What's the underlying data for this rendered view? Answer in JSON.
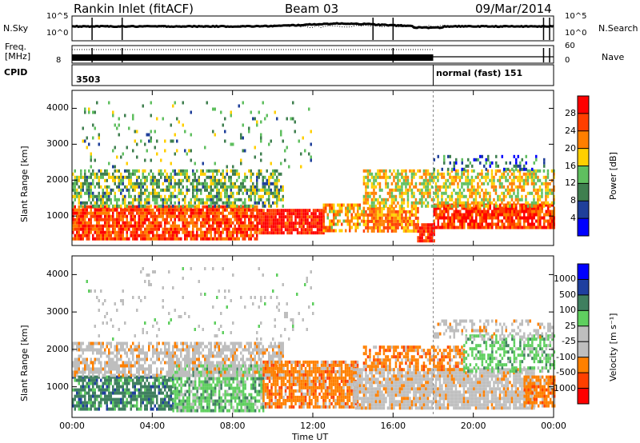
{
  "header": {
    "station": "Rankin Inlet (fitACF)",
    "beam": "Beam 03",
    "date": "09/Mar/2014"
  },
  "top_panel": {
    "nsky_label": "N.Sky",
    "nsearch_label": "N.Search",
    "freq_label_1": "Freq.",
    "freq_label_2": "[MHz]",
    "nave_label": "Nave",
    "cpid_label": "CPID",
    "left_ticks": [
      "10^5",
      "10^0",
      "8"
    ],
    "right_ticks": [
      "10^5",
      "10^0",
      "60",
      "0"
    ],
    "cpid_1": "3503",
    "cpid_2": "normal (fast) 151",
    "cpid_2_time": 18.0
  },
  "colors": {
    "power": [
      "#0000ff",
      "#1f3f9a",
      "#3f7f4f",
      "#5fbf5f",
      "#ffcf00",
      "#ff7f00",
      "#ff3f00",
      "#ff0000"
    ],
    "velocity": [
      "#ff0000",
      "#ff4000",
      "#ff8000",
      "#bebebe",
      "#bebebe",
      "#5fcf5f",
      "#3f7f5f",
      "#1f3f9f",
      "#0000ff"
    ],
    "ground_scatter": "#bebebe"
  },
  "chart_data": [
    {
      "type": "heatmap",
      "name": "power-panel",
      "ylabel": "Slant Range [km]",
      "yticks": [
        1000,
        2000,
        3000,
        4000
      ],
      "ylim": [
        180,
        4500
      ],
      "colorbar_label": "Power [dB]",
      "colorbar_ticks": [
        4,
        8,
        12,
        16,
        20,
        24,
        28
      ],
      "colorbar_range": [
        0,
        32
      ],
      "bands": [
        {
          "t0": 0.0,
          "t1": 9.2,
          "r0": 350,
          "r1": 1300,
          "level": 26,
          "density": 0.85
        },
        {
          "t0": 9.2,
          "t1": 12.5,
          "r0": 550,
          "r1": 1200,
          "level": 29,
          "density": 0.9
        },
        {
          "t0": 12.5,
          "t1": 14.5,
          "r0": 550,
          "r1": 1350,
          "level": 20,
          "density": 0.7
        },
        {
          "t0": 14.5,
          "t1": 17.2,
          "r0": 600,
          "r1": 1250,
          "level": 22,
          "density": 0.8
        },
        {
          "t0": 17.2,
          "t1": 18.0,
          "r0": 300,
          "r1": 800,
          "level": 29,
          "density": 0.85
        },
        {
          "t0": 18.0,
          "t1": 24.0,
          "r0": 700,
          "r1": 1350,
          "level": 27,
          "density": 0.85
        },
        {
          "t0": 0.0,
          "t1": 10.5,
          "r0": 1300,
          "r1": 2300,
          "level": 13,
          "density": 0.6
        },
        {
          "t0": 14.5,
          "t1": 24.0,
          "r0": 1300,
          "r1": 2300,
          "level": 18,
          "density": 0.6
        },
        {
          "t0": 18.0,
          "t1": 23.5,
          "r0": 2300,
          "r1": 2700,
          "level": 8,
          "density": 0.3
        },
        {
          "t0": 0.5,
          "t1": 12.0,
          "r0": 2400,
          "r1": 4200,
          "level": 12,
          "density": 0.06
        }
      ]
    },
    {
      "type": "heatmap",
      "name": "velocity-panel",
      "xlabel": "Time UT",
      "ylabel": "Slant Range [km]",
      "xticks": [
        "00:00",
        "04:00",
        "08:00",
        "12:00",
        "16:00",
        "20:00",
        "00:00"
      ],
      "xlim": [
        0,
        24
      ],
      "yticks": [
        1000,
        2000,
        3000,
        4000
      ],
      "ylim": [
        180,
        4500
      ],
      "colorbar_label": "Velocity [m s⁻¹]",
      "colorbar_ticks": [
        "1000",
        "500",
        "100",
        "25",
        "-25",
        "-100",
        "-500",
        "-1000"
      ],
      "bands": [
        {
          "t0": 0.0,
          "t1": 5.0,
          "r0": 400,
          "r1": 1300,
          "cls": 6,
          "density": 0.75
        },
        {
          "t0": 5.0,
          "t1": 9.5,
          "r0": 400,
          "r1": 1600,
          "cls": 5,
          "density": 0.75
        },
        {
          "t0": 0.0,
          "t1": 10.5,
          "r0": 1300,
          "r1": 2200,
          "cls": 3,
          "density": 0.65
        },
        {
          "t0": 9.5,
          "t1": 14.2,
          "r0": 500,
          "r1": 1700,
          "cls": 2,
          "density": 0.8
        },
        {
          "t0": 14.0,
          "t1": 23.0,
          "r0": 450,
          "r1": 1500,
          "cls": 3,
          "density": 0.85
        },
        {
          "t0": 14.5,
          "t1": 19.5,
          "r0": 1450,
          "r1": 2100,
          "cls": 2,
          "density": 0.6
        },
        {
          "t0": 19.5,
          "t1": 24.0,
          "r0": 1400,
          "r1": 2400,
          "cls": 5,
          "density": 0.55
        },
        {
          "t0": 22.5,
          "t1": 24.0,
          "r0": 500,
          "r1": 1300,
          "cls": 2,
          "density": 0.8
        },
        {
          "t0": 18.0,
          "t1": 24.0,
          "r0": 2300,
          "r1": 2800,
          "cls": 3,
          "density": 0.35
        },
        {
          "t0": 0.5,
          "t1": 12.0,
          "r0": 2300,
          "r1": 4200,
          "cls": 4,
          "density": 0.05
        }
      ]
    }
  ]
}
